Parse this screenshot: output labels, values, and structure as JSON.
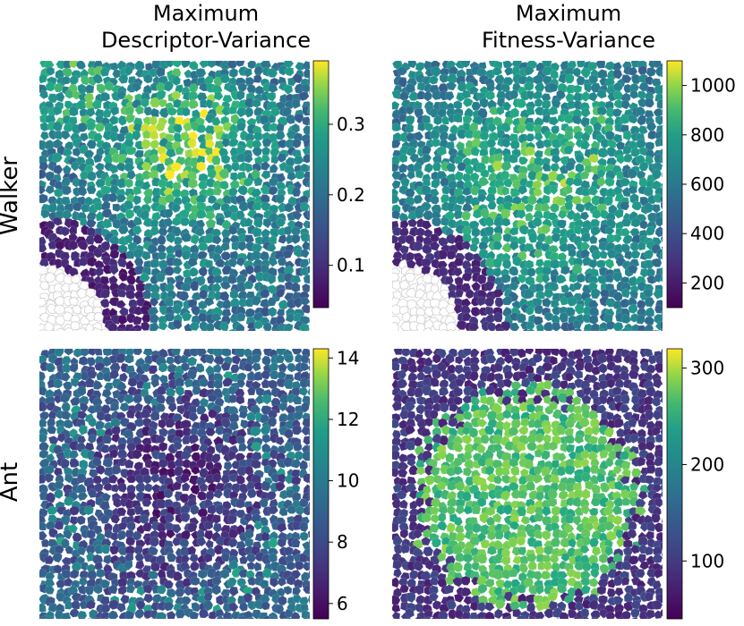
{
  "figure": {
    "col_titles": [
      [
        "Maximum",
        "Descriptor-Variance"
      ],
      [
        "Maximum",
        "Fitness-Variance"
      ]
    ],
    "row_labels": [
      "Walker",
      "Ant"
    ]
  },
  "chart_data": [
    {
      "type": "heatmap",
      "title": "Maximum Descriptor-Variance",
      "row": "Walker",
      "colormap": "viridis",
      "cells": "voronoi",
      "colorbar": {
        "min": 0.04,
        "max": 0.39,
        "ticks": [
          0.1,
          0.2,
          0.3
        ],
        "tick_labels": [
          "0.1",
          "0.2",
          "0.3"
        ]
      },
      "pattern": {
        "base": 0.21,
        "noise": 0.06,
        "hotspots": [
          {
            "x": 0.55,
            "y": 0.32,
            "r": 0.2,
            "amp": 0.13
          },
          {
            "x": 0.1,
            "y": 0.1,
            "r": 0.15,
            "amp": 0.07
          }
        ],
        "empty_region": {
          "x": 0.0,
          "y": 1.0,
          "r": 0.25
        },
        "low_band": {
          "x": 0.0,
          "y": 1.0,
          "r": 0.42,
          "width": 0.1,
          "level": 0.06
        }
      }
    },
    {
      "type": "heatmap",
      "title": "Maximum Fitness-Variance",
      "row": "Walker",
      "colormap": "viridis",
      "cells": "voronoi",
      "colorbar": {
        "min": 100,
        "max": 1100,
        "ticks": [
          200,
          400,
          600,
          800,
          1000
        ],
        "tick_labels": [
          "200",
          "400",
          "600",
          "800",
          "1000"
        ]
      },
      "pattern": {
        "base": 560,
        "noise": 140,
        "hotspots": [
          {
            "x": 0.55,
            "y": 0.45,
            "r": 0.3,
            "amp": 320
          }
        ],
        "empty_region": {
          "x": 0.0,
          "y": 1.0,
          "r": 0.25
        },
        "low_band": {
          "x": 0.0,
          "y": 1.0,
          "r": 0.42,
          "width": 0.1,
          "level": 200
        }
      }
    },
    {
      "type": "heatmap",
      "title": "Maximum Descriptor-Variance",
      "row": "Ant",
      "colormap": "viridis",
      "cells": "voronoi",
      "colorbar": {
        "min": 5.5,
        "max": 14.3,
        "ticks": [
          6,
          8,
          10,
          12,
          14
        ],
        "tick_labels": [
          "6",
          "8",
          "10",
          "12",
          "14"
        ]
      },
      "pattern": {
        "base": 9.5,
        "noise": 1.2,
        "center_dip": {
          "x": 0.5,
          "y": 0.52,
          "r": 0.32,
          "amp": -2.6
        },
        "ring": {
          "x": 0.5,
          "y": 0.52,
          "r": 0.4,
          "width": 0.08,
          "amp": 1.8
        }
      }
    },
    {
      "type": "heatmap",
      "title": "Maximum Fitness-Variance",
      "row": "Ant",
      "colormap": "viridis",
      "cells": "voronoi",
      "colorbar": {
        "min": 40,
        "max": 320,
        "ticks": [
          100,
          200,
          300
        ],
        "tick_labels": [
          "100",
          "200",
          "300"
        ]
      },
      "pattern": {
        "base": 95,
        "noise": 25,
        "disk": {
          "x": 0.5,
          "y": 0.55,
          "r": 0.4,
          "level": 270,
          "edge": 0.05
        }
      }
    }
  ]
}
